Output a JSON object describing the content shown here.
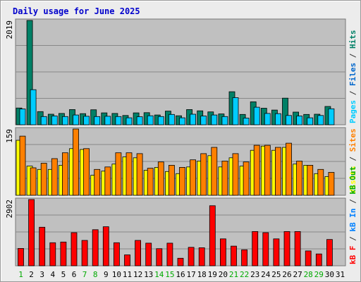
{
  "chart_data": {
    "type": "bar",
    "title": "Daily usage for June 2025",
    "categories": [
      "1",
      "2",
      "3",
      "4",
      "5",
      "6",
      "7",
      "8",
      "9",
      "10",
      "11",
      "12",
      "13",
      "14",
      "15",
      "16",
      "17",
      "18",
      "19",
      "20",
      "21",
      "22",
      "23",
      "24",
      "25",
      "26",
      "27",
      "28",
      "29",
      "30",
      "31"
    ],
    "weekend_days": [
      "1",
      "7",
      "8",
      "14",
      "15",
      "21",
      "22",
      "28",
      "29"
    ],
    "panels": [
      {
        "id": "hits-files-pages",
        "max_label": "2019",
        "ylim": [
          0,
          2019
        ],
        "side_labels": [
          {
            "text": "Pages",
            "color": "#00ccff"
          },
          {
            "text": " / ",
            "color": "#333333"
          },
          {
            "text": "Files",
            "color": "#0066cc"
          },
          {
            "text": " / ",
            "color": "#333333"
          },
          {
            "text": "Hits",
            "color": "#008066"
          }
        ],
        "series": [
          {
            "name": "Hits",
            "color": "#008066",
            "values": [
              325,
              2019,
              255,
              205,
              220,
              295,
              215,
              290,
              230,
              220,
              180,
              230,
              235,
              190,
              265,
              175,
              295,
              270,
              250,
              210,
              640,
              200,
              445,
              320,
              285,
              515,
              245,
              200,
              205,
              355,
              0
            ]
          },
          {
            "name": "Files",
            "color": "#00ccff",
            "values": [
              305,
              680,
              160,
              170,
              160,
              190,
              165,
              160,
              165,
              160,
              135,
              155,
              175,
              160,
              200,
              135,
              205,
              170,
              190,
              160,
              525,
              130,
              340,
              220,
              215,
              180,
              170,
              135,
              180,
              310,
              0
            ]
          }
        ]
      },
      {
        "id": "visits-sites",
        "max_label": "159",
        "ylim": [
          0,
          159
        ],
        "side_labels": [
          {
            "text": "Visits",
            "color": "#ffff00"
          },
          {
            "text": " / ",
            "color": "#333333"
          },
          {
            "text": "Sites",
            "color": "#ff8000"
          }
        ],
        "series": [
          {
            "name": "Visits",
            "color": "#ffff00",
            "values": [
              132,
              70,
              62,
              62,
              72,
              112,
              110,
              48,
              58,
              75,
              92,
              90,
              60,
              67,
              57,
              52,
              68,
              82,
              95,
              68,
              90,
              70,
              108,
              118,
              108,
              115,
              75,
              72,
              52,
              45,
              0
            ]
          },
          {
            "name": "Sites",
            "color": "#ff8000",
            "values": [
              142,
              66,
              77,
              88,
              102,
              159,
              112,
              62,
              68,
              102,
              102,
              100,
              65,
              80,
              72,
              67,
              85,
              100,
              115,
              82,
              100,
              80,
              120,
              120,
              115,
              125,
              82,
              72,
              62,
              55,
              0
            ]
          }
        ]
      },
      {
        "id": "kbytes",
        "max_label": "2902",
        "ylim": [
          0,
          2902
        ],
        "side_labels": [
          {
            "text": "kB F",
            "color": "#ff0000"
          },
          {
            "text": " / ",
            "color": "#333333"
          },
          {
            "text": "kB In",
            "color": "#0080ff"
          },
          {
            "text": " / ",
            "color": "#333333"
          },
          {
            "text": "kB Out",
            "color": "#00aa00"
          }
        ],
        "series": [
          {
            "name": "kB F",
            "color": "#ff0000",
            "values": [
              760,
              2902,
              1690,
              1010,
              1040,
              1450,
              1110,
              1580,
              1710,
              1010,
              480,
              1110,
              990,
              750,
              990,
              330,
              810,
              790,
              2630,
              1180,
              860,
              700,
              1500,
              1450,
              1180,
              1500,
              1500,
              650,
              520,
              1150,
              0
            ]
          }
        ]
      }
    ]
  }
}
